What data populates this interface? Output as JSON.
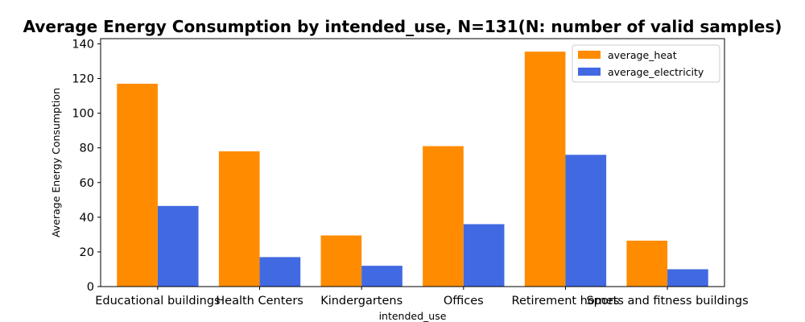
{
  "chart_data": {
    "type": "bar",
    "title": "Average Energy Consumption by intended_use, N=131(N: number of valid samples)",
    "xlabel": "intended_use",
    "ylabel": "Average Energy Consumption",
    "categories": [
      "Educational buildings",
      "Health Centers",
      "Kindergartens",
      "Offices",
      "Retirement homes",
      "Sports and fitness buildings"
    ],
    "series": [
      {
        "name": "average_heat",
        "color": "#ff8c00",
        "values": [
          117,
          78,
          29.5,
          81,
          135.5,
          26.5
        ]
      },
      {
        "name": "average_electricity",
        "color": "#4169e1",
        "values": [
          46.5,
          17,
          12,
          36,
          76,
          10
        ]
      }
    ],
    "ylim": [
      0,
      143
    ],
    "yticks": [
      0,
      20,
      40,
      60,
      80,
      100,
      120,
      140
    ],
    "grid": false,
    "legend_position": "top-right"
  }
}
